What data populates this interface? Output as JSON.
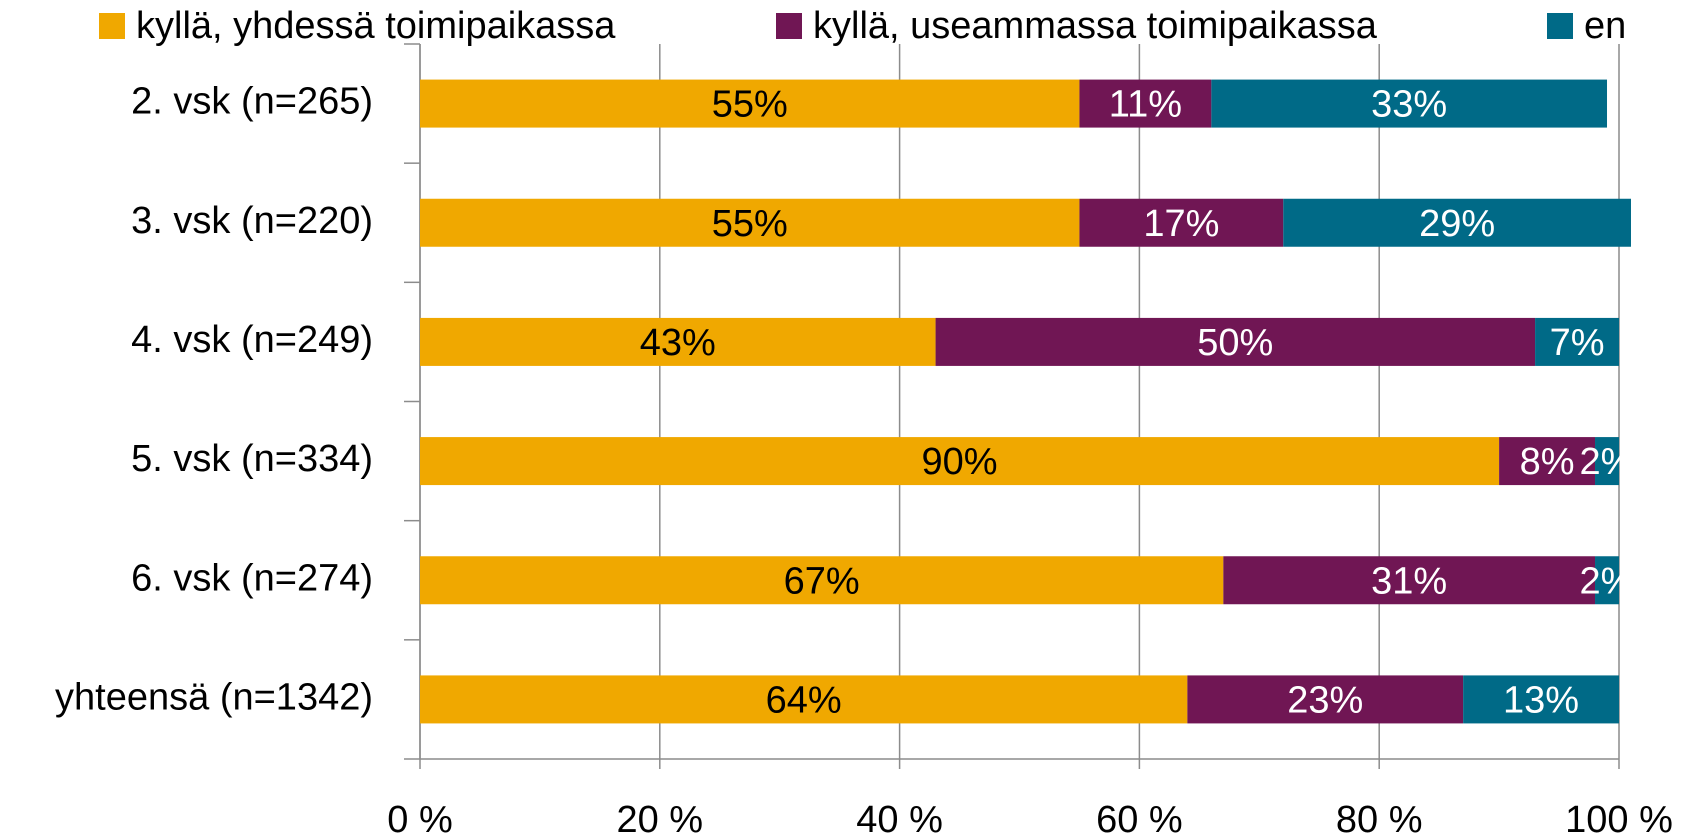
{
  "chart_data": {
    "type": "stacked_barh",
    "categories": [
      "2. vsk (n=265)",
      "3. vsk (n=220)",
      "4. vsk (n=249)",
      "5. vsk (n=334)",
      "6. vsk (n=274)",
      "yhteensä (n=1342)"
    ],
    "series": [
      {
        "name": "kyllä, yhdessä toimipaikassa",
        "color": "#f0a800",
        "label_color": "#000000",
        "values": [
          55,
          55,
          43,
          90,
          67,
          64
        ],
        "value_labels": [
          "55%",
          "55%",
          "43%",
          "90%",
          "67%",
          "64%"
        ]
      },
      {
        "name": "kyllä, useammassa toimipaikassa",
        "color": "#701654",
        "label_color": "#ffffff",
        "values": [
          11,
          17,
          50,
          8,
          31,
          23
        ],
        "value_labels": [
          "11%",
          "17%",
          "50%",
          "8%",
          "31%",
          "23%"
        ]
      },
      {
        "name": "en",
        "color": "#006a87",
        "label_color": "#ffffff",
        "values": [
          33,
          29,
          7,
          2,
          2,
          13
        ],
        "value_labels": [
          "33%",
          "29%",
          "7%",
          "2%",
          "2%",
          "13%"
        ]
      }
    ],
    "xlim": [
      0,
      100
    ],
    "xticks": [
      {
        "value": 0,
        "label": "0 %"
      },
      {
        "value": 20,
        "label": "20 %"
      },
      {
        "value": 40,
        "label": "40 %"
      },
      {
        "value": 60,
        "label": "60 %"
      },
      {
        "value": 80,
        "label": "80 %"
      },
      {
        "value": 100,
        "label": "100 %"
      }
    ],
    "grid": true,
    "legend": "top"
  }
}
